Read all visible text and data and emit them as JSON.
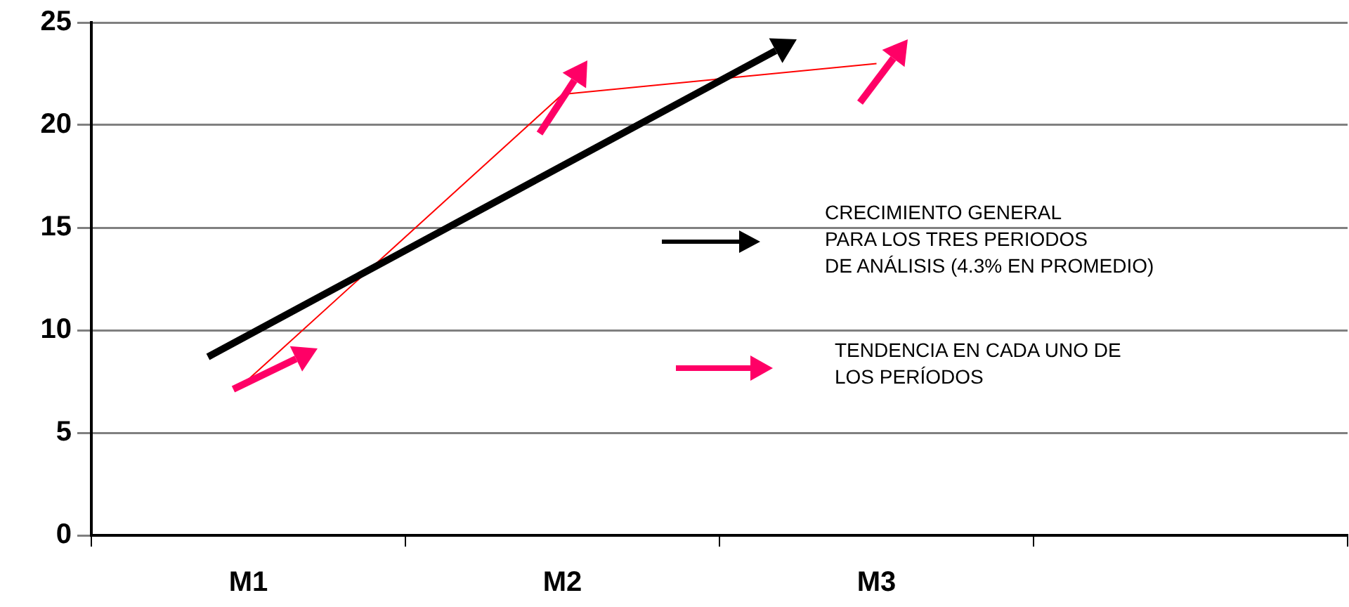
{
  "chart_data": {
    "type": "line",
    "categories": [
      "M1",
      "M2",
      "M3",
      null
    ],
    "series": [
      {
        "color": "#ff0000",
        "values": [
          7.6,
          21.5,
          23,
          null
        ]
      }
    ],
    "ylim": [
      0,
      25
    ],
    "yticks": [
      0,
      5,
      10,
      15,
      20,
      25
    ],
    "grid": "y",
    "legend": false,
    "marker": "none",
    "line_style": "solid",
    "annotations": [
      "CRECIMIENTO GENERAL\nPARA LOS TRES PERIODOS\nDE ANÁLISIS (4.3% EN PROMEDIO)",
      "TENDENCIA EN CADA UNO DE\nLOS PERÍODOS"
    ]
  }
}
